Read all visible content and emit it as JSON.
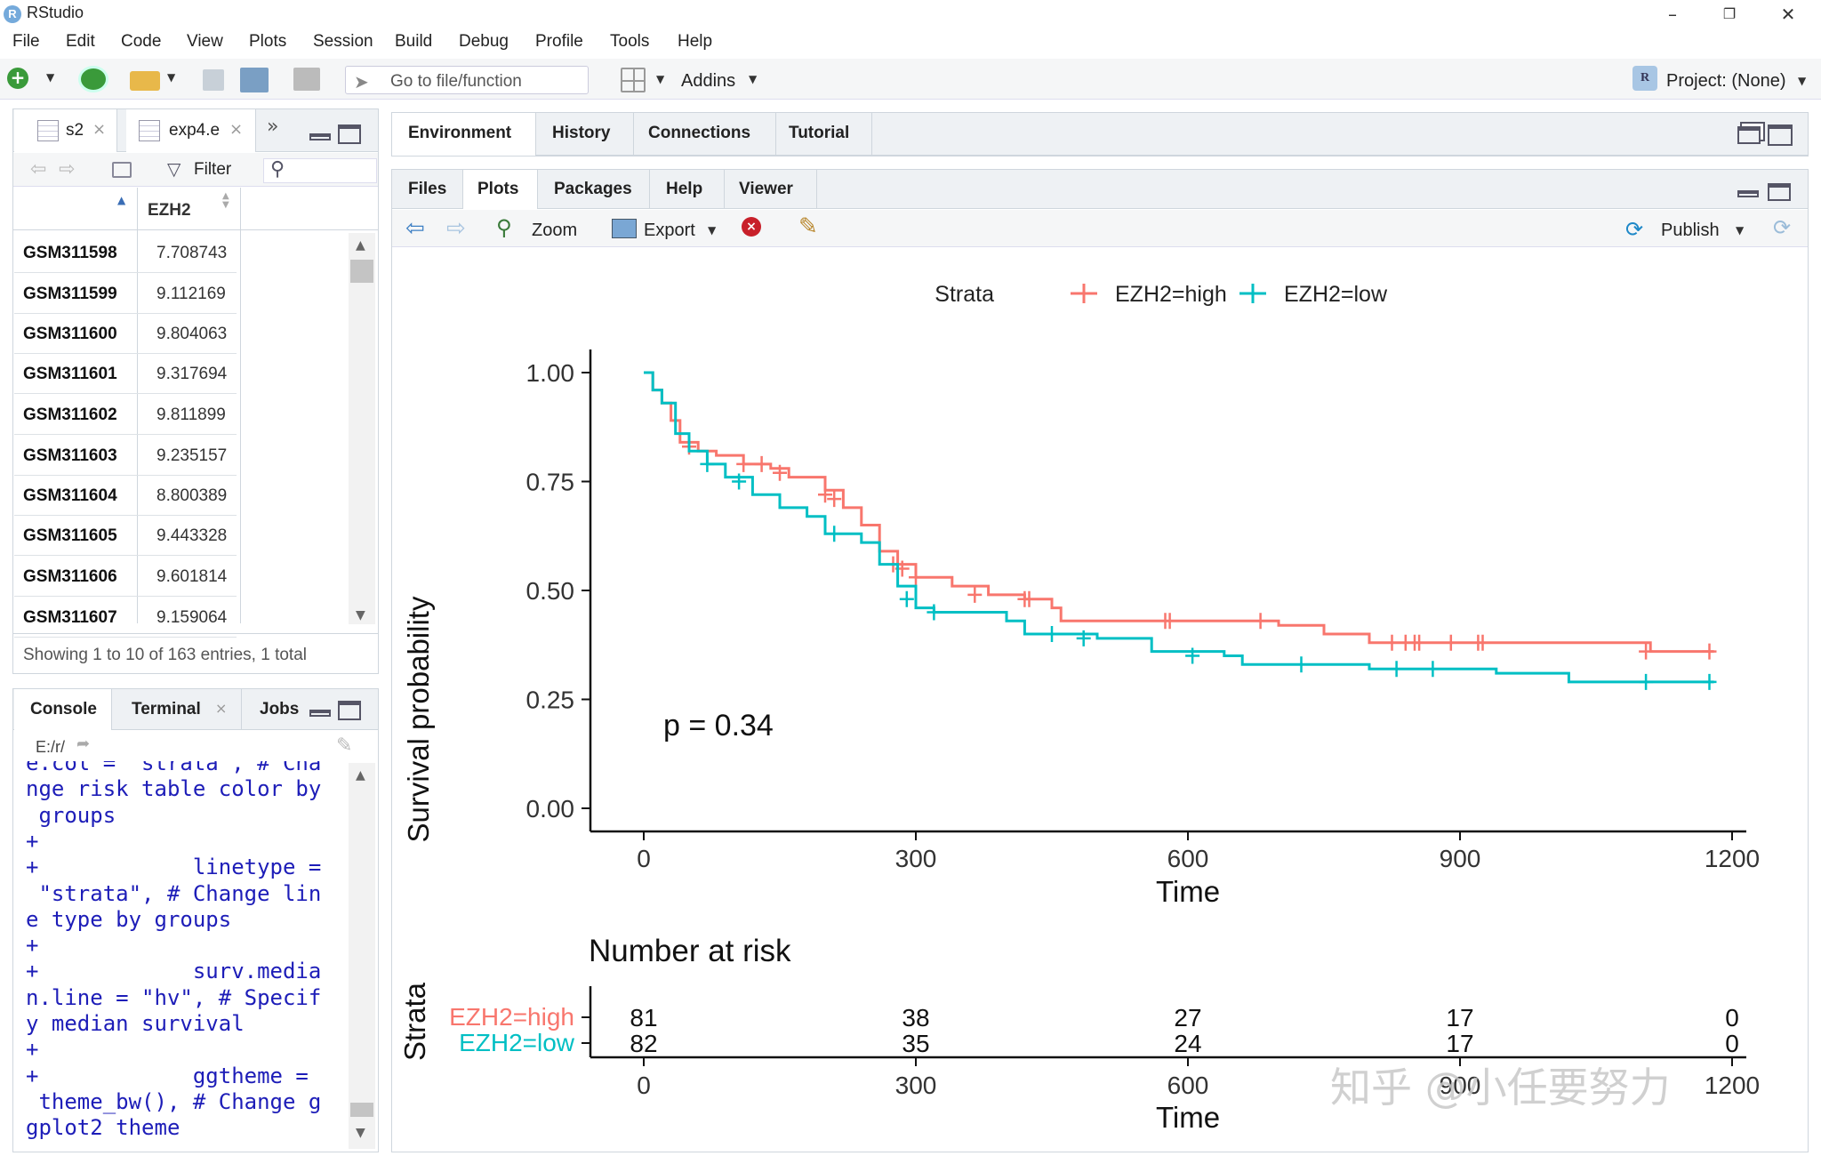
{
  "app": {
    "title": "RStudio",
    "logo": "R"
  },
  "menu": [
    "File",
    "Edit",
    "Code",
    "View",
    "Plots",
    "Session",
    "Build",
    "Debug",
    "Profile",
    "Tools",
    "Help"
  ],
  "toolbar": {
    "goto_placeholder": "Go to file/function",
    "addins": "Addins",
    "project": "Project: (None)"
  },
  "data_viewer": {
    "tabs": [
      "s2",
      "exp4.e"
    ],
    "filter": "Filter",
    "column": "EZH2",
    "rows": [
      {
        "id": "GSM311598",
        "value": "7.708743"
      },
      {
        "id": "GSM311599",
        "value": "9.112169"
      },
      {
        "id": "GSM311600",
        "value": "9.804063"
      },
      {
        "id": "GSM311601",
        "value": "9.317694"
      },
      {
        "id": "GSM311602",
        "value": "9.811899"
      },
      {
        "id": "GSM311603",
        "value": "9.235157"
      },
      {
        "id": "GSM311604",
        "value": "8.800389"
      },
      {
        "id": "GSM311605",
        "value": "9.443328"
      },
      {
        "id": "GSM311606",
        "value": "9.601814"
      },
      {
        "id": "GSM311607",
        "value": "9.159064"
      }
    ],
    "status": "Showing 1 to 10 of 163 entries, 1 total"
  },
  "console": {
    "tabs": [
      "Console",
      "Terminal",
      "Jobs"
    ],
    "path": "E:/r/",
    "lines": [
      "e.col = \"strata\", # Cha",
      "nge risk table color by",
      " groups",
      "+",
      "+            linetype =",
      " \"strata\", # Change lin",
      "e type by groups",
      "+",
      "+            surv.media",
      "n.line = \"hv\", # Specif",
      "y median survival",
      "+",
      "+            ggtheme =",
      " theme_bw(), # Change g",
      "gplot2 theme"
    ]
  },
  "env_tabs": [
    "Environment",
    "History",
    "Connections",
    "Tutorial"
  ],
  "plot_tabs": [
    "Files",
    "Plots",
    "Packages",
    "Help",
    "Viewer"
  ],
  "plot_toolbar": {
    "zoom": "Zoom",
    "export": "Export",
    "publish": "Publish"
  },
  "colors": {
    "high": "#F8766D",
    "low": "#00BFC4"
  },
  "watermark": "知乎 @小任要努力",
  "chart_data": {
    "type": "line",
    "ylabel": "Survival probability",
    "xlabel": "Time",
    "legend_title": "Strata",
    "legend_position": "top",
    "xlim": [
      0,
      1200
    ],
    "ylim": [
      0,
      1
    ],
    "xticks": [
      "0",
      "300",
      "600",
      "900",
      "1200"
    ],
    "yticks": [
      "0.00",
      "0.25",
      "0.50",
      "0.75",
      "1.00"
    ],
    "pvalue": "p = 0.34",
    "series": [
      {
        "name": "EZH2=high",
        "points": [
          [
            0,
            1
          ],
          [
            10,
            0.96
          ],
          [
            20,
            0.93
          ],
          [
            30,
            0.89
          ],
          [
            40,
            0.84
          ],
          [
            60,
            0.82
          ],
          [
            80,
            0.81
          ],
          [
            110,
            0.79
          ],
          [
            140,
            0.78
          ],
          [
            160,
            0.76
          ],
          [
            200,
            0.73
          ],
          [
            220,
            0.69
          ],
          [
            240,
            0.65
          ],
          [
            260,
            0.59
          ],
          [
            280,
            0.56
          ],
          [
            300,
            0.53
          ],
          [
            340,
            0.51
          ],
          [
            380,
            0.49
          ],
          [
            420,
            0.48
          ],
          [
            450,
            0.46
          ],
          [
            460,
            0.43
          ],
          [
            520,
            0.43
          ],
          [
            600,
            0.43
          ],
          [
            700,
            0.42
          ],
          [
            750,
            0.4
          ],
          [
            760,
            0.4
          ],
          [
            800,
            0.38
          ],
          [
            900,
            0.38
          ],
          [
            1100,
            0.38
          ],
          [
            1110,
            0.36
          ],
          [
            1180,
            0.36
          ]
        ],
        "censor": [
          [
            50,
            0.83
          ],
          [
            110,
            0.79
          ],
          [
            130,
            0.79
          ],
          [
            150,
            0.77
          ],
          [
            200,
            0.72
          ],
          [
            210,
            0.71
          ],
          [
            275,
            0.56
          ],
          [
            285,
            0.55
          ],
          [
            300,
            0.53
          ],
          [
            365,
            0.49
          ],
          [
            420,
            0.48
          ],
          [
            425,
            0.48
          ],
          [
            575,
            0.43
          ],
          [
            580,
            0.43
          ],
          [
            680,
            0.43
          ],
          [
            825,
            0.38
          ],
          [
            840,
            0.38
          ],
          [
            850,
            0.38
          ],
          [
            855,
            0.38
          ],
          [
            890,
            0.38
          ],
          [
            920,
            0.38
          ],
          [
            925,
            0.38
          ],
          [
            1105,
            0.36
          ],
          [
            1175,
            0.36
          ]
        ]
      },
      {
        "name": "EZH2=low",
        "points": [
          [
            0,
            1
          ],
          [
            10,
            0.96
          ],
          [
            20,
            0.93
          ],
          [
            35,
            0.86
          ],
          [
            50,
            0.82
          ],
          [
            70,
            0.79
          ],
          [
            90,
            0.76
          ],
          [
            120,
            0.72
          ],
          [
            150,
            0.69
          ],
          [
            180,
            0.67
          ],
          [
            200,
            0.63
          ],
          [
            240,
            0.61
          ],
          [
            260,
            0.56
          ],
          [
            280,
            0.51
          ],
          [
            300,
            0.46
          ],
          [
            320,
            0.45
          ],
          [
            400,
            0.43
          ],
          [
            420,
            0.4
          ],
          [
            500,
            0.39
          ],
          [
            560,
            0.36
          ],
          [
            640,
            0.35
          ],
          [
            660,
            0.33
          ],
          [
            760,
            0.33
          ],
          [
            800,
            0.32
          ],
          [
            870,
            0.32
          ],
          [
            940,
            0.31
          ],
          [
            1000,
            0.31
          ],
          [
            1020,
            0.29
          ],
          [
            1180,
            0.29
          ]
        ],
        "censor": [
          [
            70,
            0.79
          ],
          [
            105,
            0.75
          ],
          [
            210,
            0.63
          ],
          [
            290,
            0.48
          ],
          [
            320,
            0.45
          ],
          [
            450,
            0.4
          ],
          [
            485,
            0.39
          ],
          [
            605,
            0.35
          ],
          [
            725,
            0.33
          ],
          [
            830,
            0.32
          ],
          [
            870,
            0.32
          ],
          [
            1105,
            0.29
          ],
          [
            1175,
            0.29
          ]
        ]
      }
    ],
    "risk_table": {
      "title": "Number at risk",
      "ylabel": "Strata",
      "rows": [
        {
          "name": "EZH2=high",
          "values": [
            "81",
            "38",
            "27",
            "17",
            "0"
          ]
        },
        {
          "name": "EZH2=low",
          "values": [
            "82",
            "35",
            "24",
            "17",
            "0"
          ]
        }
      ]
    }
  }
}
